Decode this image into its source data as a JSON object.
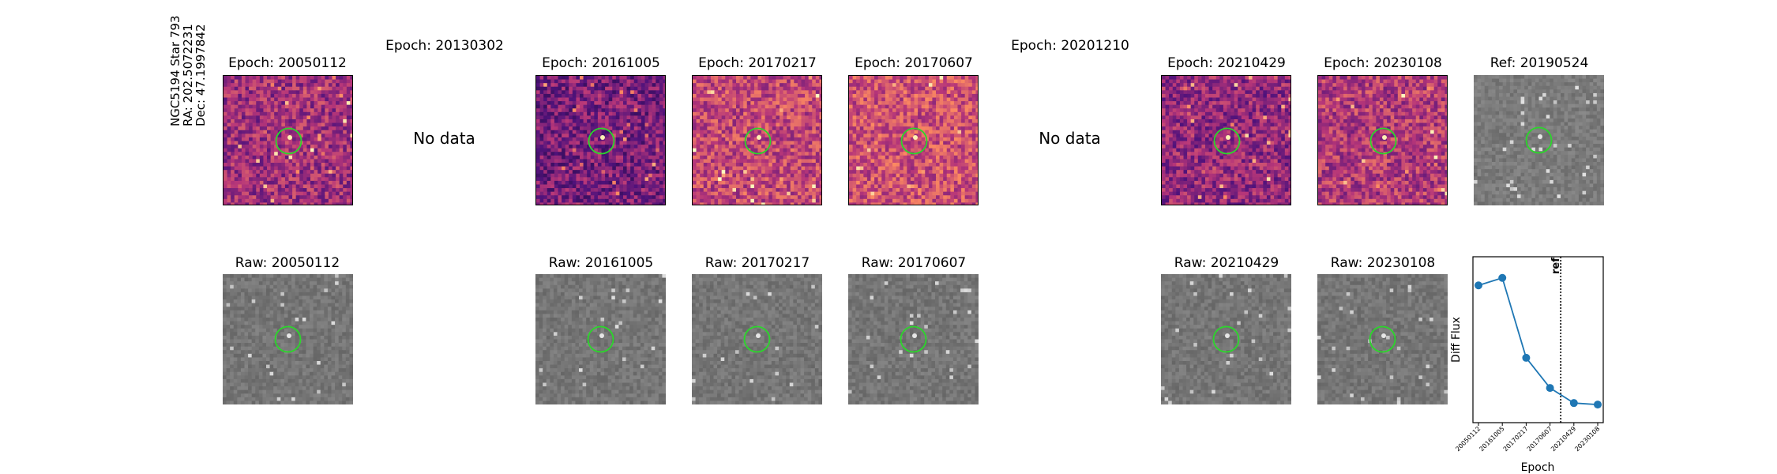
{
  "target": {
    "name": "NGC5194 Star 793",
    "ra": "RA: 202.5072231",
    "dec": "Dec: 47.1997842"
  },
  "nodata_text": "No data",
  "diff_row": [
    {
      "title": "Epoch: 20050112",
      "has_data": true,
      "colormap": "magma"
    },
    {
      "title": "Epoch: 20130302",
      "has_data": false
    },
    {
      "title": "Epoch: 20161005",
      "has_data": true,
      "colormap": "magma"
    },
    {
      "title": "Epoch: 20170217",
      "has_data": true,
      "colormap": "magma"
    },
    {
      "title": "Epoch: 20170607",
      "has_data": true,
      "colormap": "magma"
    },
    {
      "title": "Epoch: 20201210",
      "has_data": false
    },
    {
      "title": "Epoch: 20210429",
      "has_data": true,
      "colormap": "magma"
    },
    {
      "title": "Epoch: 20230108",
      "has_data": true,
      "colormap": "magma"
    },
    {
      "title": "Ref: 20190524",
      "has_data": true,
      "colormap": "gray"
    }
  ],
  "raw_row": [
    {
      "title": "Raw: 20050112"
    },
    {
      "title": "Raw: 20161005"
    },
    {
      "title": "Raw: 20170217"
    },
    {
      "title": "Raw: 20170607"
    },
    {
      "title": "Raw: 20210429"
    },
    {
      "title": "Raw: 20230108"
    }
  ],
  "colors": {
    "circle": "#2bd62b",
    "line": "#1f77b4",
    "magma_dark": "#3b0f6f",
    "magma_mid": "#b5367a",
    "magma_bright": "#fb8861",
    "gray_bg": "#7a7a7a"
  },
  "chart_data": {
    "type": "line",
    "xlabel": "Epoch",
    "ylabel": "Diff Flux",
    "categories": [
      "20050112",
      "20161005",
      "20170217",
      "20170607",
      "20210429",
      "20230108"
    ],
    "values": [
      0.81,
      0.86,
      0.33,
      0.13,
      0.03,
      0.02
    ],
    "ylim": [
      -0.1,
      1.0
    ],
    "ref_line": {
      "label": "ref",
      "x_between": [
        "20170607",
        "20210429"
      ],
      "style": "dotted"
    },
    "grid": false
  }
}
